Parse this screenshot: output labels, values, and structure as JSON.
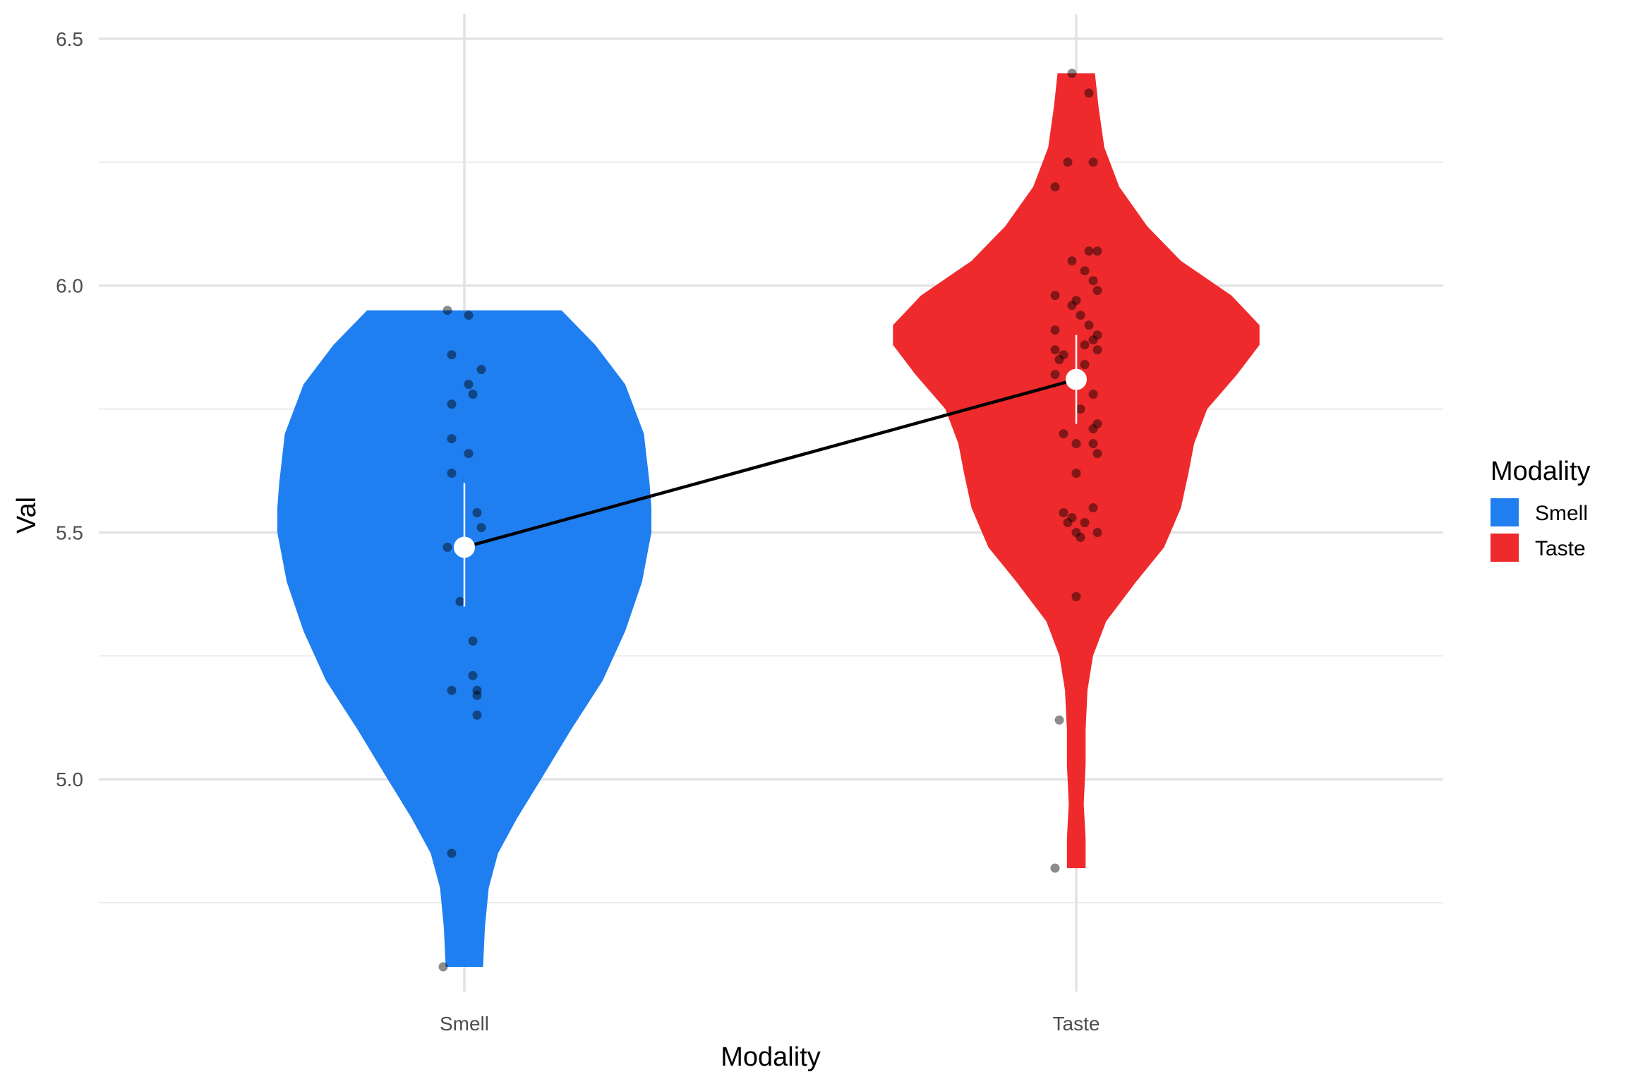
{
  "chart_data": {
    "type": "violin",
    "xlabel": "Modality",
    "ylabel": "Val",
    "ylim": [
      4.57,
      6.55
    ],
    "yticks": [
      5.0,
      5.5,
      6.0,
      6.5
    ],
    "ytick_labels": [
      "5.0",
      "5.5",
      "6.0",
      "6.5"
    ],
    "grid": true,
    "legend": {
      "title": "Modality",
      "position": "right",
      "entries": [
        {
          "label": "Smell",
          "color": "#1F7FF0"
        },
        {
          "label": "Taste",
          "color": "#EE2A2C"
        }
      ]
    },
    "categories": [
      "Smell",
      "Taste"
    ],
    "groups": [
      {
        "name": "Smell",
        "color": "#1F7FF0",
        "mean": 5.47,
        "ci": [
          5.35,
          5.6
        ],
        "range": [
          4.62,
          5.95
        ],
        "density": [
          [
            4.62,
            0.1
          ],
          [
            4.7,
            0.11
          ],
          [
            4.78,
            0.13
          ],
          [
            4.85,
            0.18
          ],
          [
            4.92,
            0.28
          ],
          [
            5.0,
            0.41
          ],
          [
            5.1,
            0.57
          ],
          [
            5.2,
            0.74
          ],
          [
            5.3,
            0.86
          ],
          [
            5.4,
            0.95
          ],
          [
            5.5,
            1.0
          ],
          [
            5.55,
            1.0
          ],
          [
            5.6,
            0.99
          ],
          [
            5.7,
            0.96
          ],
          [
            5.8,
            0.86
          ],
          [
            5.88,
            0.7
          ],
          [
            5.95,
            0.52
          ]
        ],
        "points": [
          [
            -0.04,
            5.95
          ],
          [
            0.01,
            5.94
          ],
          [
            -0.03,
            5.86
          ],
          [
            0.04,
            5.83
          ],
          [
            0.01,
            5.8
          ],
          [
            0.02,
            5.78
          ],
          [
            -0.03,
            5.76
          ],
          [
            -0.03,
            5.69
          ],
          [
            0.01,
            5.66
          ],
          [
            -0.03,
            5.62
          ],
          [
            0.03,
            5.54
          ],
          [
            0.04,
            5.51
          ],
          [
            -0.04,
            5.47
          ],
          [
            -0.01,
            5.36
          ],
          [
            0.02,
            5.28
          ],
          [
            0.02,
            5.21
          ],
          [
            -0.03,
            5.18
          ],
          [
            0.03,
            5.18
          ],
          [
            0.03,
            5.17
          ],
          [
            0.03,
            5.13
          ],
          [
            -0.03,
            4.85
          ],
          [
            -0.05,
            4.62
          ]
        ]
      },
      {
        "name": "Taste",
        "color": "#EE2A2C",
        "mean": 5.81,
        "ci": [
          5.72,
          5.9
        ],
        "range": [
          4.82,
          6.43
        ],
        "density": [
          [
            4.82,
            0.05
          ],
          [
            4.88,
            0.05
          ],
          [
            4.95,
            0.04
          ],
          [
            5.03,
            0.05
          ],
          [
            5.1,
            0.05
          ],
          [
            5.18,
            0.06
          ],
          [
            5.25,
            0.09
          ],
          [
            5.32,
            0.16
          ],
          [
            5.4,
            0.32
          ],
          [
            5.47,
            0.47
          ],
          [
            5.55,
            0.56
          ],
          [
            5.62,
            0.6
          ],
          [
            5.68,
            0.63
          ],
          [
            5.75,
            0.7
          ],
          [
            5.82,
            0.86
          ],
          [
            5.88,
            0.98
          ],
          [
            5.92,
            0.98
          ],
          [
            5.98,
            0.83
          ],
          [
            6.05,
            0.56
          ],
          [
            6.12,
            0.38
          ],
          [
            6.2,
            0.23
          ],
          [
            6.28,
            0.15
          ],
          [
            6.36,
            0.12
          ],
          [
            6.43,
            0.1
          ]
        ],
        "points": [
          [
            -0.01,
            6.43
          ],
          [
            0.03,
            6.39
          ],
          [
            -0.02,
            6.25
          ],
          [
            0.04,
            6.25
          ],
          [
            -0.05,
            6.2
          ],
          [
            0.03,
            6.07
          ],
          [
            0.05,
            6.07
          ],
          [
            -0.01,
            6.05
          ],
          [
            0.02,
            6.03
          ],
          [
            0.04,
            6.01
          ],
          [
            0.05,
            5.99
          ],
          [
            -0.05,
            5.98
          ],
          [
            0.0,
            5.97
          ],
          [
            -0.01,
            5.96
          ],
          [
            0.01,
            5.94
          ],
          [
            0.03,
            5.92
          ],
          [
            -0.05,
            5.91
          ],
          [
            0.05,
            5.9
          ],
          [
            0.04,
            5.89
          ],
          [
            0.02,
            5.88
          ],
          [
            -0.05,
            5.87
          ],
          [
            -0.03,
            5.86
          ],
          [
            0.05,
            5.87
          ],
          [
            -0.04,
            5.85
          ],
          [
            0.02,
            5.84
          ],
          [
            -0.05,
            5.82
          ],
          [
            0.04,
            5.78
          ],
          [
            0.01,
            5.75
          ],
          [
            0.05,
            5.72
          ],
          [
            0.04,
            5.71
          ],
          [
            -0.03,
            5.7
          ],
          [
            0.04,
            5.68
          ],
          [
            0.0,
            5.68
          ],
          [
            0.05,
            5.66
          ],
          [
            0.0,
            5.62
          ],
          [
            0.04,
            5.55
          ],
          [
            -0.03,
            5.54
          ],
          [
            -0.01,
            5.53
          ],
          [
            -0.02,
            5.52
          ],
          [
            0.02,
            5.52
          ],
          [
            0.0,
            5.5
          ],
          [
            0.01,
            5.49
          ],
          [
            0.05,
            5.5
          ],
          [
            0.0,
            5.37
          ],
          [
            -0.04,
            5.12
          ],
          [
            -0.05,
            4.82
          ]
        ]
      }
    ]
  }
}
